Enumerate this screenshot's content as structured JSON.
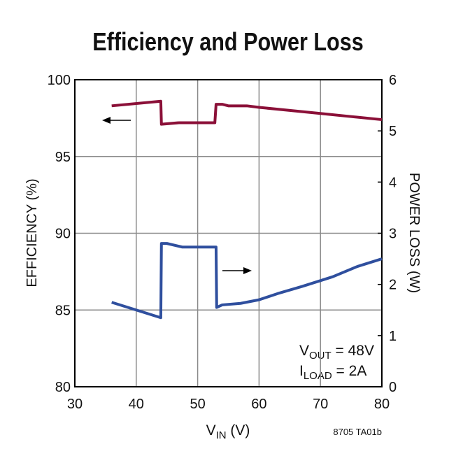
{
  "chart_data": {
    "type": "line",
    "title": "Efficiency and Power Loss",
    "x_label": {
      "main": "V",
      "sub": "IN",
      "rest": " (V)"
    },
    "y_label": "EFFICIENCY (%)",
    "y2_label": "POWER LOSS (W)",
    "annotation_lines": [
      {
        "main": "V",
        "sub": "OUT",
        "rest": " = 48V"
      },
      {
        "main": "I",
        "sub": "LOAD",
        "rest": " = 2A"
      }
    ],
    "footnote": "8705 TA01b",
    "xlim": [
      30,
      80
    ],
    "xticks": [
      30,
      40,
      50,
      60,
      70,
      80
    ],
    "ylim": [
      80,
      100
    ],
    "yticks": [
      80,
      85,
      90,
      95,
      100
    ],
    "y2lim": [
      0,
      6
    ],
    "y2ticks": [
      0,
      1,
      2,
      3,
      4,
      5,
      6
    ],
    "grid": true,
    "series": [
      {
        "name": "Efficiency",
        "color": "#8b1038",
        "axis": "y",
        "x": [
          36,
          44,
          44.1,
          47,
          52.8,
          53,
          54,
          55,
          58,
          60,
          65,
          70,
          75,
          80
        ],
        "values": [
          98.3,
          98.6,
          97.1,
          97.2,
          97.2,
          98.4,
          98.4,
          98.3,
          98.3,
          98.2,
          98.0,
          97.8,
          97.6,
          97.4
        ]
      },
      {
        "name": "Power Loss",
        "color": "#2f4f9e",
        "axis": "y2",
        "x": [
          36,
          44,
          44.1,
          45,
          47.5,
          53,
          53.1,
          54,
          57,
          60,
          63,
          67,
          72,
          76,
          80
        ],
        "values": [
          1.65,
          1.35,
          2.8,
          2.8,
          2.73,
          2.73,
          1.55,
          1.6,
          1.63,
          1.7,
          1.82,
          1.96,
          2.15,
          2.35,
          2.5
        ]
      }
    ]
  }
}
